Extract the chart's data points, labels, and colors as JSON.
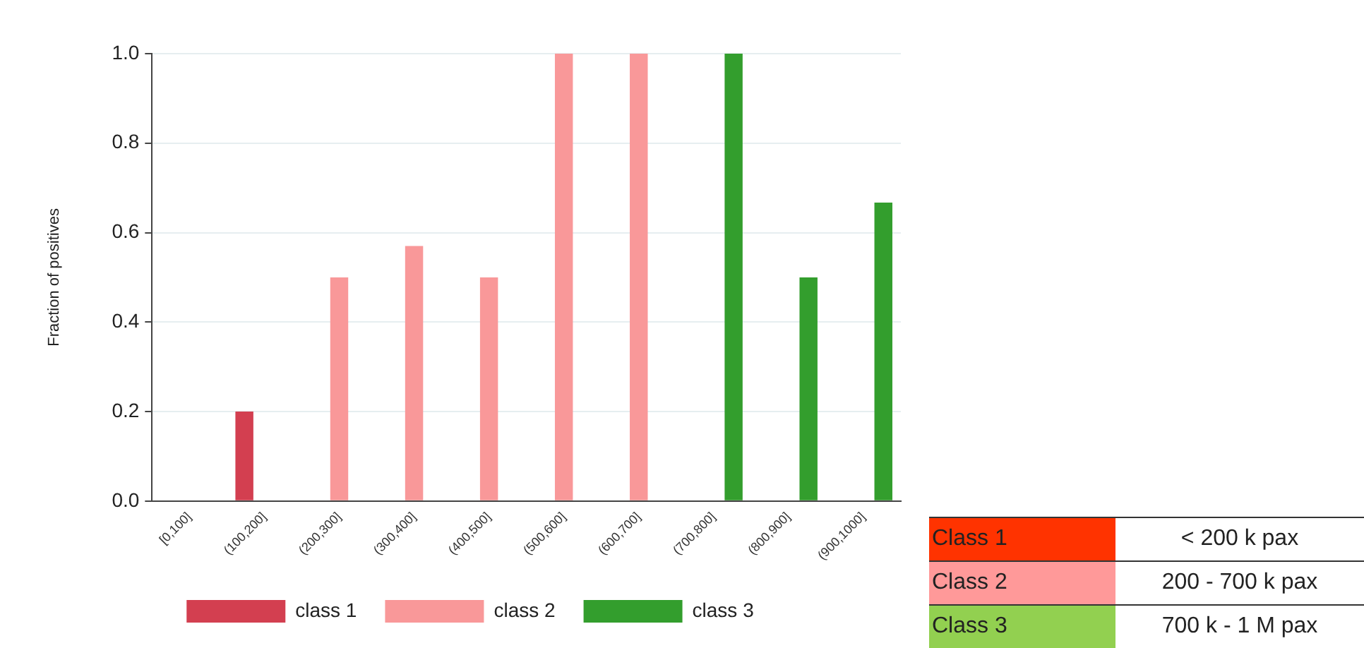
{
  "chart_data": {
    "type": "bar",
    "ylabel": "Fraction of positives",
    "categories": [
      "[0,100]",
      "(100,200]",
      "(200,300]",
      "(300,400]",
      "(400,500]",
      "(500,600]",
      "(600,700]",
      "(700,800]",
      "(800,900]",
      "(900,1000]"
    ],
    "series": [
      {
        "name": "class 1",
        "color": "#d33f50",
        "values": [
          null,
          0.2,
          null,
          null,
          null,
          null,
          null,
          null,
          null,
          null
        ]
      },
      {
        "name": "class 2",
        "color": "#f99899",
        "values": [
          null,
          null,
          0.5,
          0.57,
          0.5,
          1.0,
          1.0,
          null,
          null,
          null
        ]
      },
      {
        "name": "class 3",
        "color": "#339e2d",
        "values": [
          null,
          null,
          null,
          null,
          null,
          null,
          null,
          1.0,
          0.5,
          0.667
        ]
      }
    ],
    "ylim": [
      0,
      1.0
    ],
    "yticks": [
      {
        "value": 0,
        "label": "0.0"
      },
      {
        "value": 0.2,
        "label": "0.2"
      },
      {
        "value": 0.4,
        "label": "0.4"
      },
      {
        "value": 0.6,
        "label": "0.6"
      },
      {
        "value": 0.8,
        "label": "0.8"
      },
      {
        "value": 1.0,
        "label": "1.0"
      }
    ],
    "grid": "y",
    "legend": "bottom",
    "annotations": [
      "Class 1",
      "< 200 k pax",
      "Class 2",
      "200 - 700 k pax",
      "Class 3",
      "700 k - 1 M pax"
    ]
  }
}
